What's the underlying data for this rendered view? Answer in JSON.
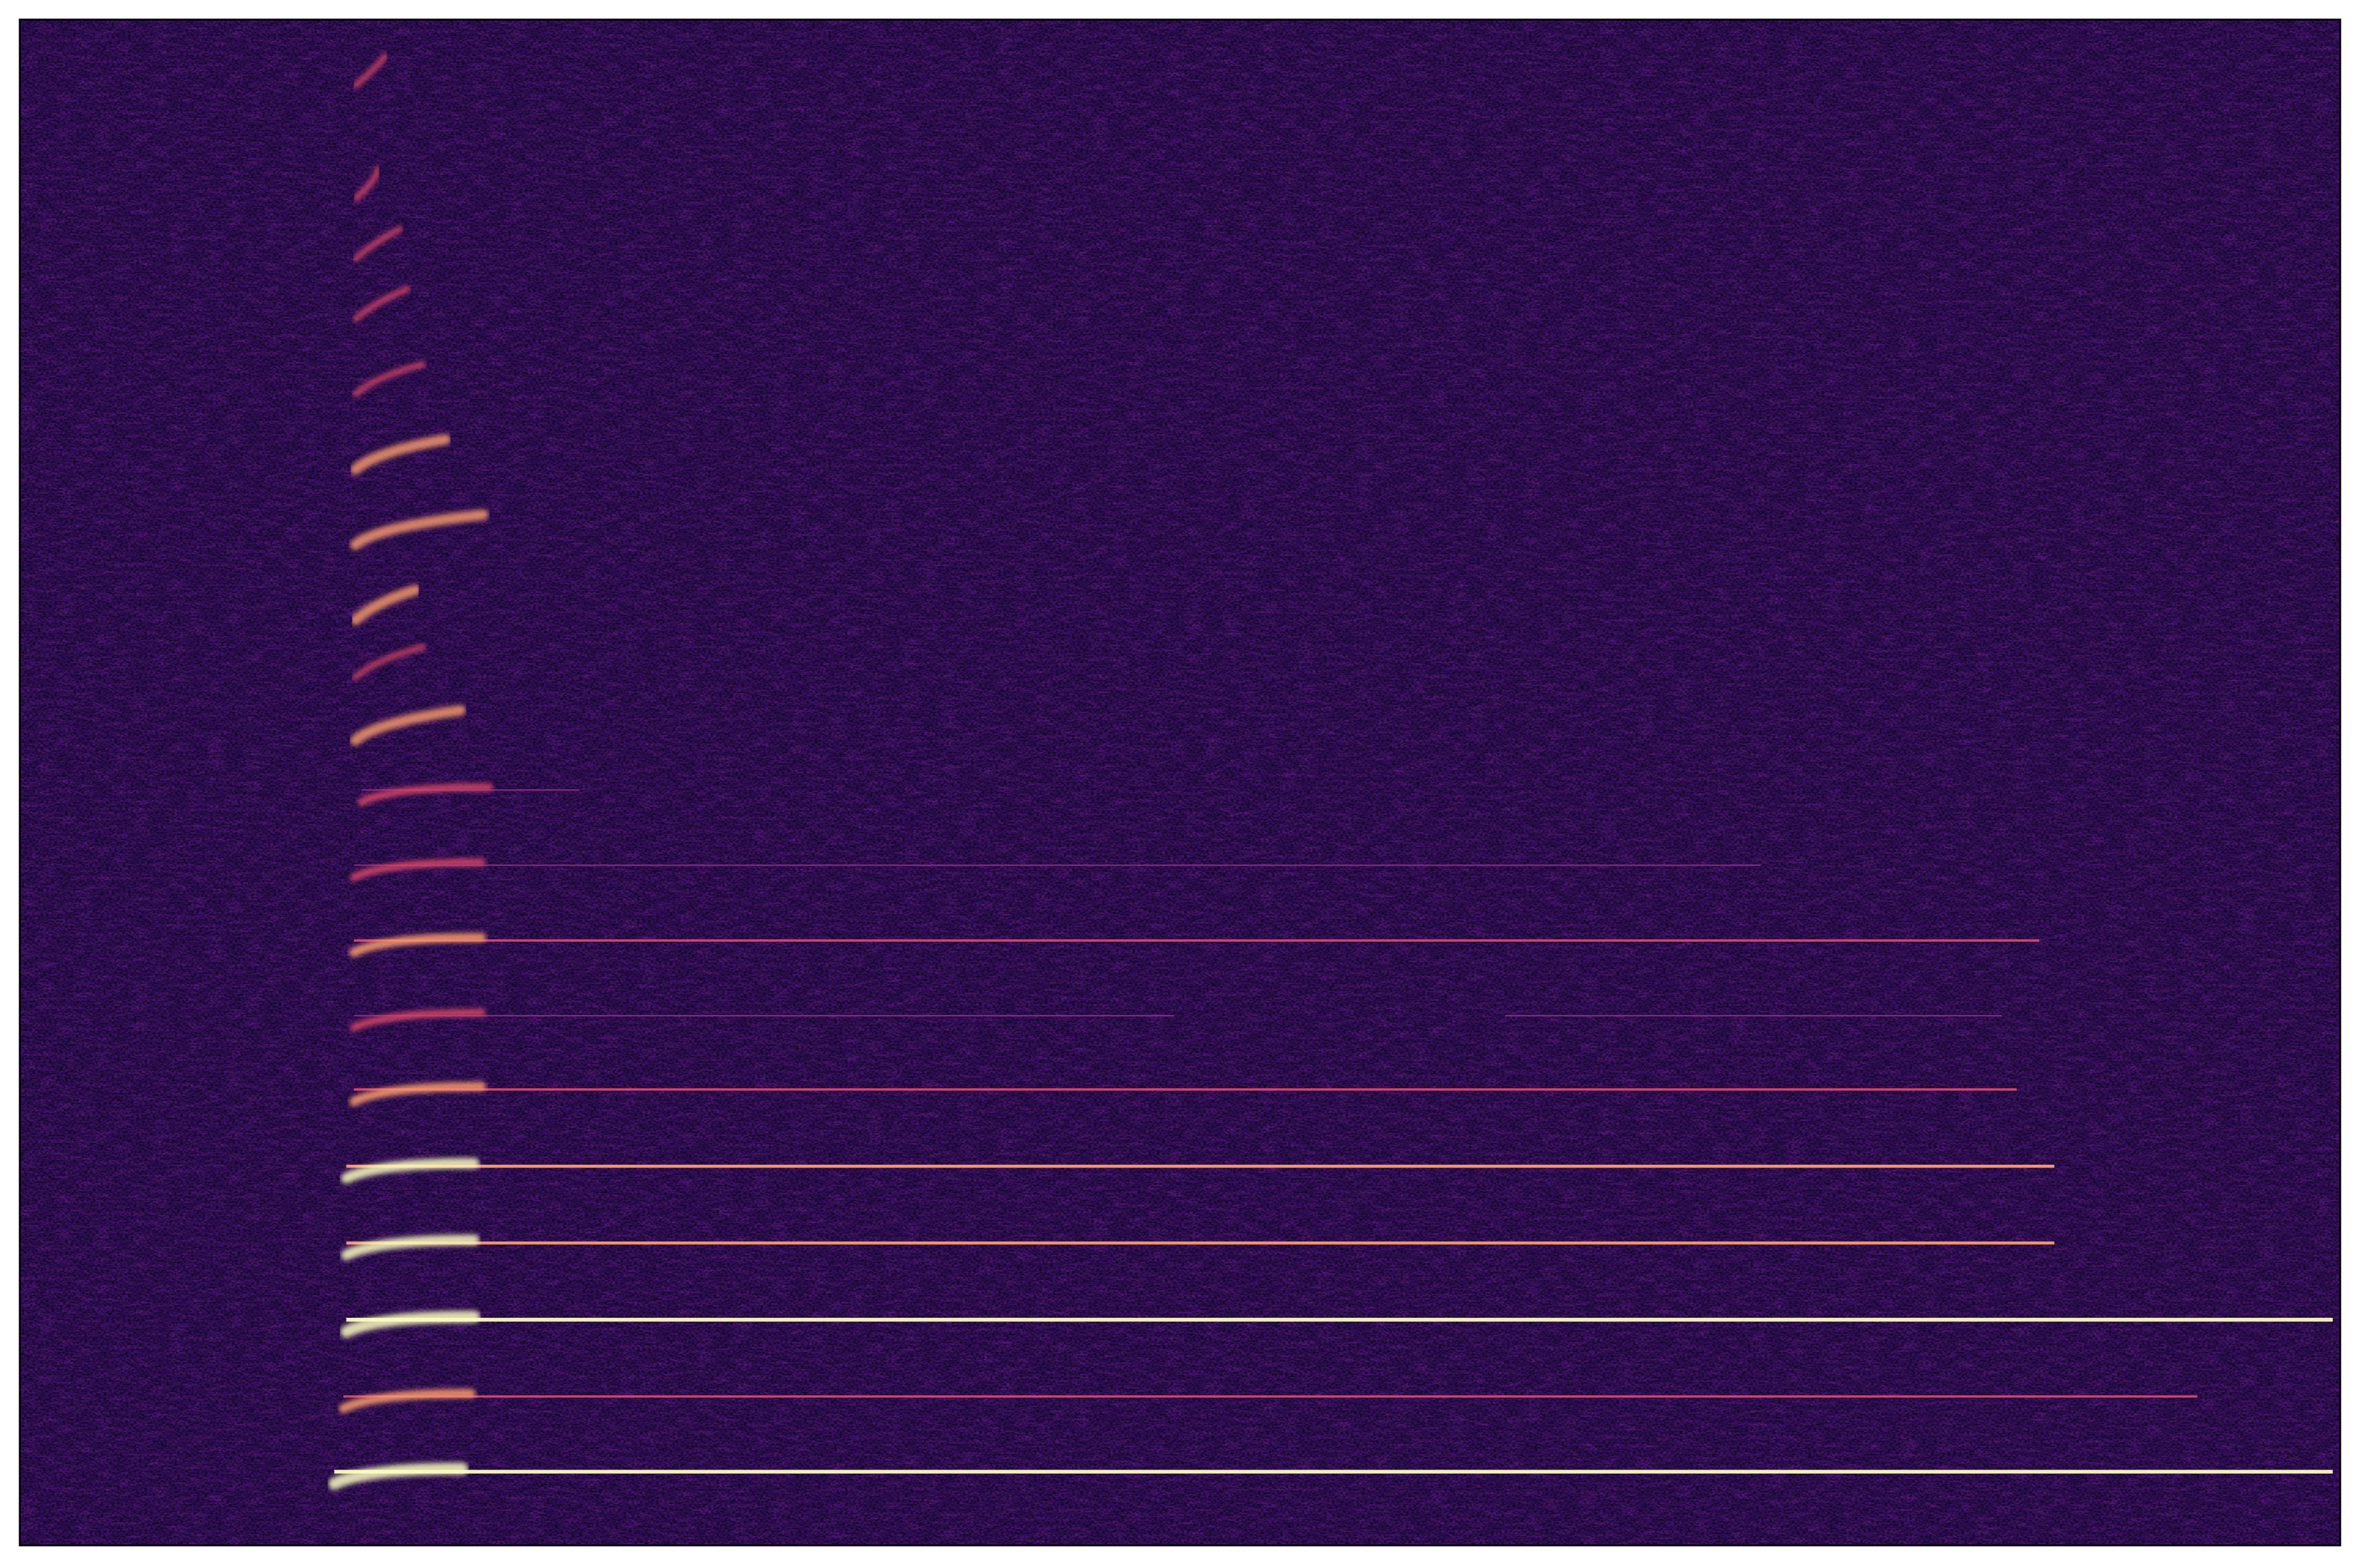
{
  "chart_data": {
    "type": "spectrogram",
    "colormap": "magma"
  }
}
